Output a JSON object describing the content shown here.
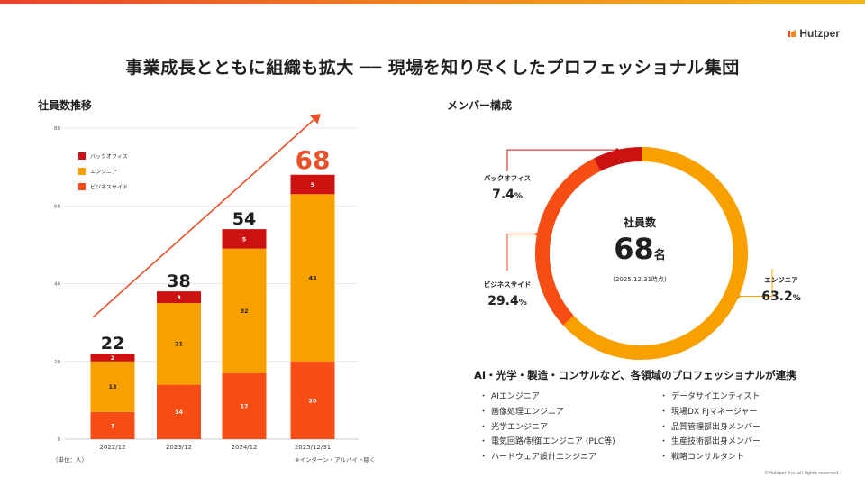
{
  "brand": "Hutzper",
  "title": "事業成長とともに組織も拡大 ── 現場を知り尽くしたプロフェッショナル集団",
  "left_section_label": "社員数推移",
  "right_section_label": "メンバー構成",
  "unit_note": "（単位：人）",
  "exclusion_note": "※インターン・アルバイト除く",
  "colors": {
    "back_office": "#cc1111",
    "engineer": "#f8a000",
    "business": "#f64d14",
    "arrow": "#e8522a",
    "total": "#e8522a"
  },
  "chart_data": [
    {
      "type": "bar",
      "stacked": true,
      "categories": [
        "2022/12",
        "2023/12",
        "2024/12",
        "2025/12/31"
      ],
      "series": [
        {
          "name": "ビジネスサイド",
          "values": [
            7,
            14,
            17,
            20
          ]
        },
        {
          "name": "エンジニア",
          "values": [
            13,
            21,
            32,
            43
          ]
        },
        {
          "name": "バックオフィス",
          "values": [
            2,
            3,
            5,
            5
          ]
        }
      ],
      "totals": [
        22,
        38,
        54,
        68
      ],
      "legend": [
        "バックオフィス",
        "エンジニア",
        "ビジネスサイド"
      ],
      "legend_position": "top-left",
      "y_ticks": [
        0,
        20,
        40,
        60,
        80
      ],
      "ylim": [
        0,
        80
      ],
      "grid": true
    },
    {
      "type": "pie",
      "donut": true,
      "labels": [
        "エンジニア",
        "ビジネスサイド",
        "バックオフィス"
      ],
      "values": [
        63.2,
        29.4,
        7.4
      ],
      "value_labels": [
        "63.2",
        "29.4",
        "7.4"
      ],
      "unit": "%",
      "center": {
        "title": "社員数",
        "value": "68",
        "unit": "名",
        "date": "(2025.12.31時点)"
      }
    }
  ],
  "skills_heading": "AI・光学・製造・コンサルなど、各領域のプロフェッショナルが連携",
  "skills_left": [
    "AIエンジニア",
    "画像処理エンジニア",
    "光学エンジニア",
    "電気回路/制御エンジニア (PLC等)",
    "ハードウェア設計エンジニア"
  ],
  "skills_right": [
    "データサイエンティスト",
    "現場DX  PJマネージャー",
    "品質管理部出身メンバー",
    "生産技術部出身メンバー",
    "戦略コンサルタント"
  ],
  "copyright": "©Hutzper Inc. all rights reserved."
}
